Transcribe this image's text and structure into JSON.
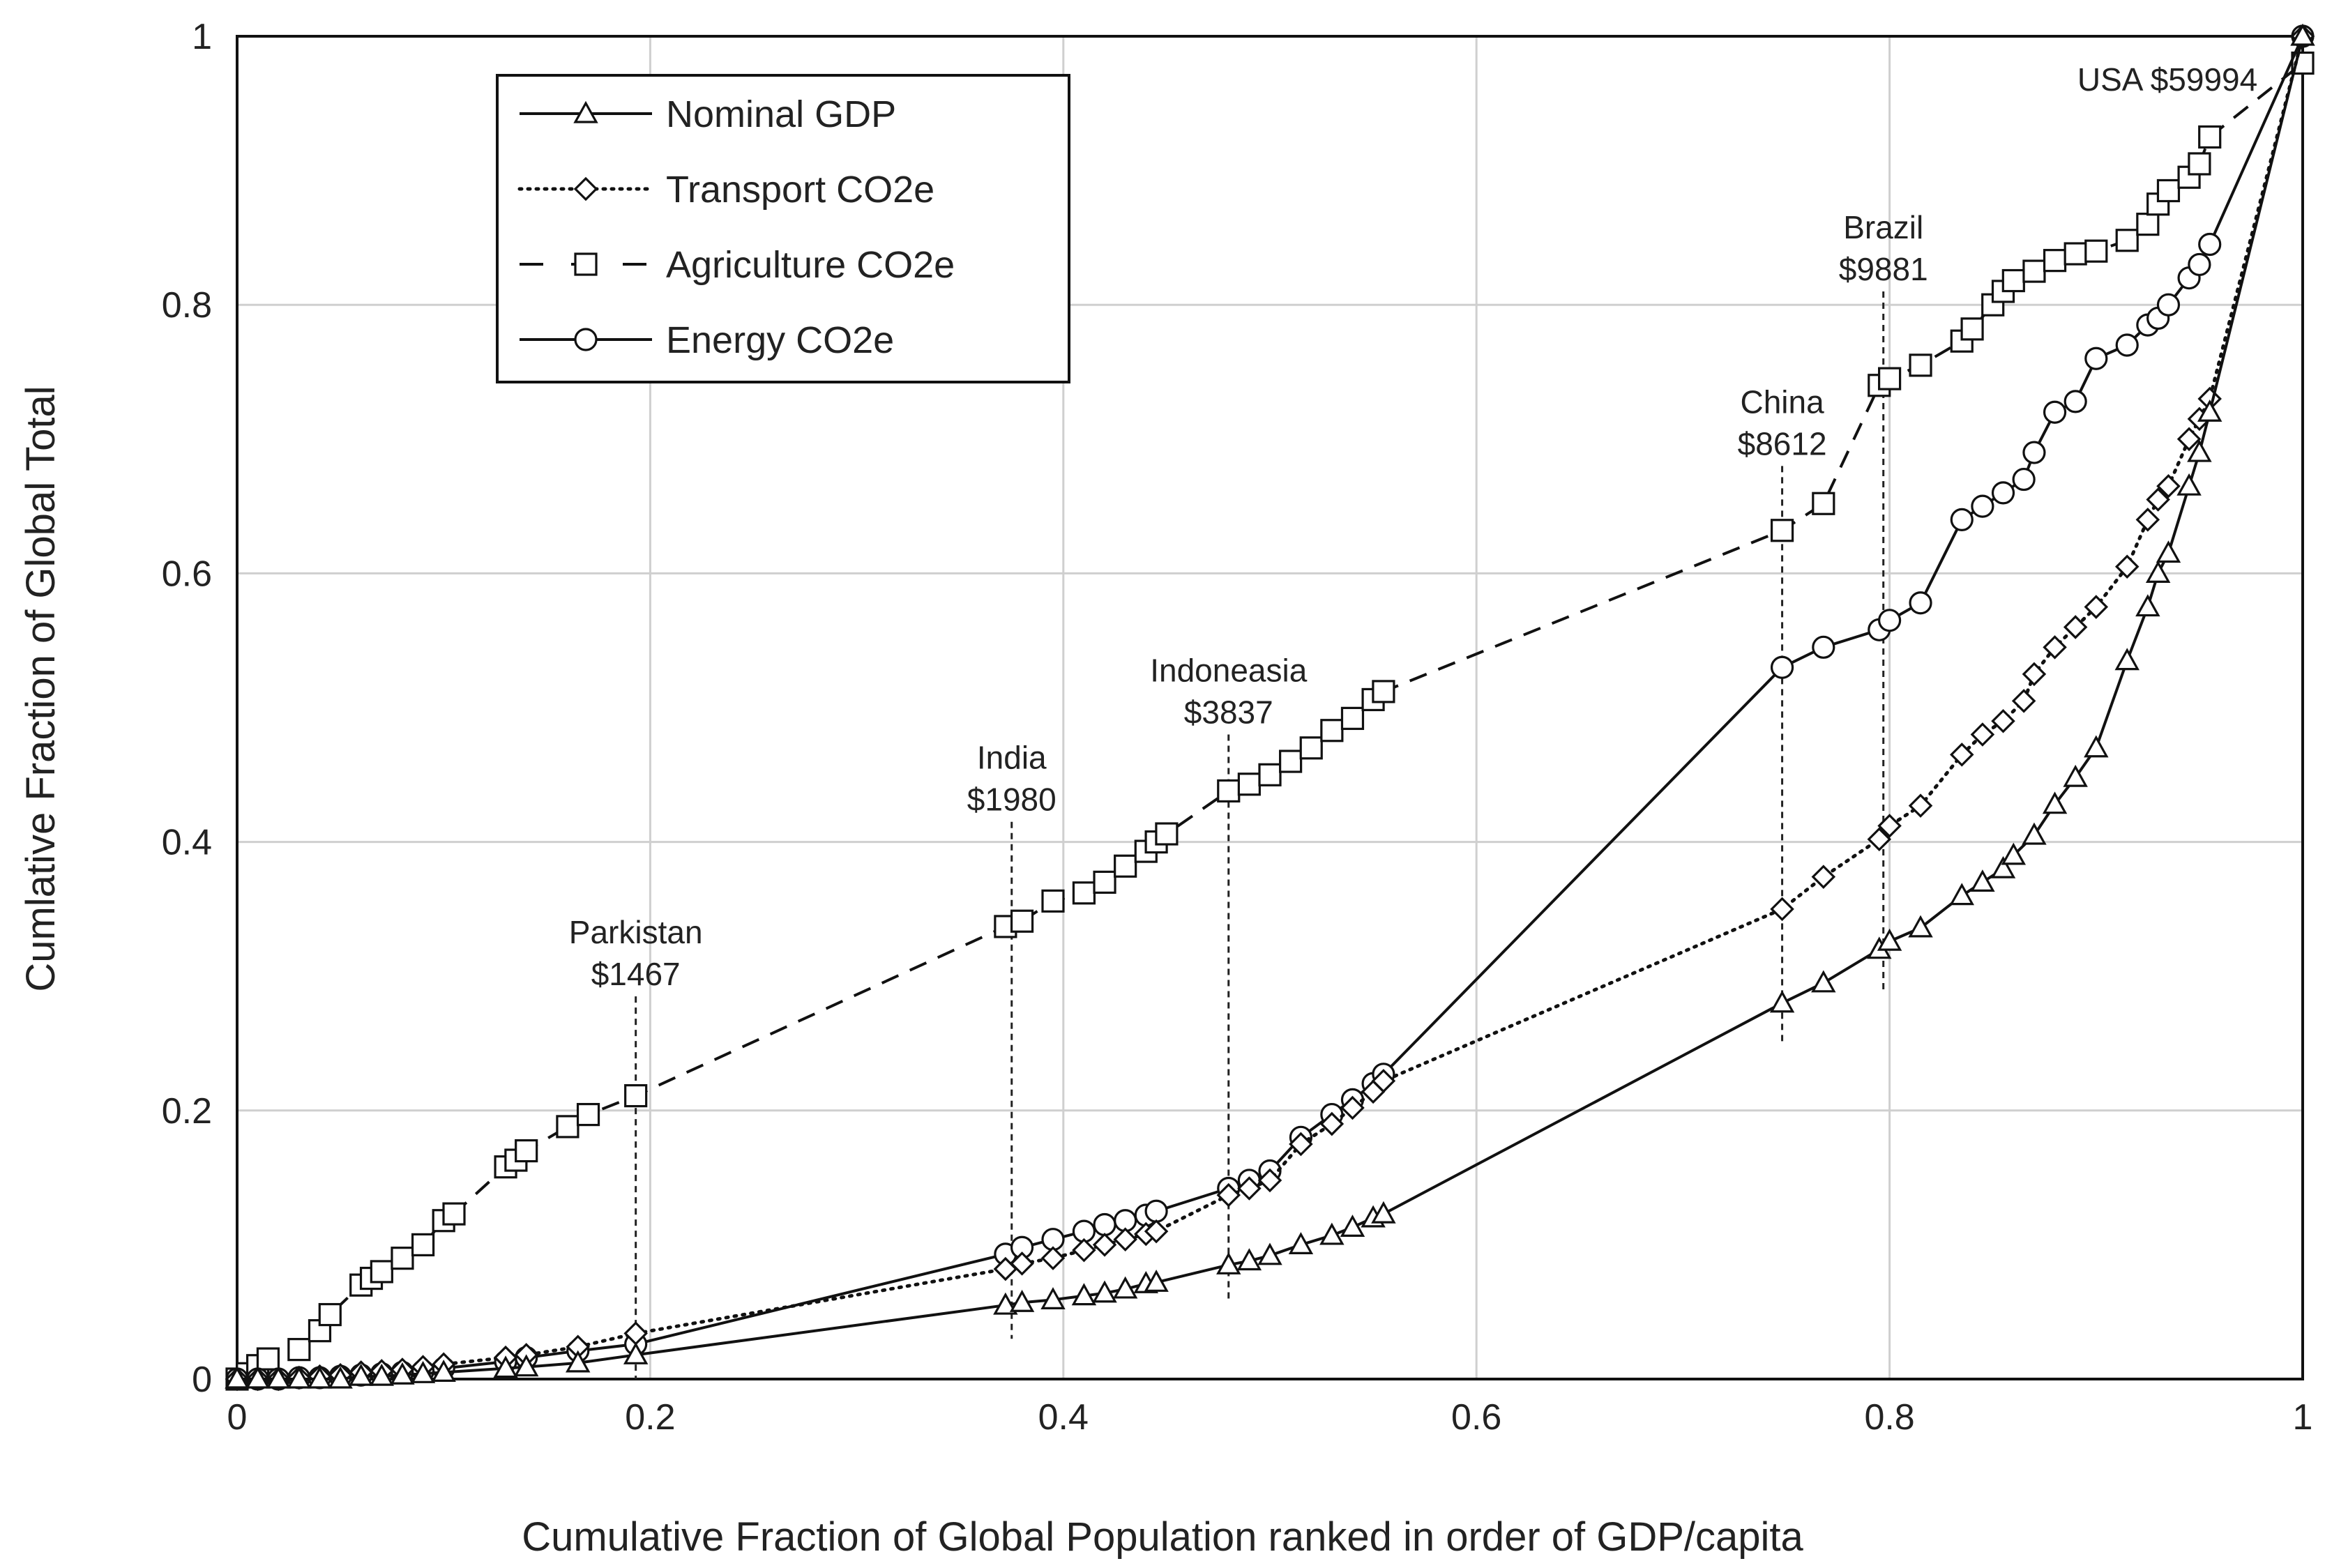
{
  "chart_data": {
    "type": "line",
    "xlabel": "Cumulative Fraction of Global Population ranked in order of GDP/capita",
    "ylabel": "Cumlative Fraction of Global  Total",
    "xlim": [
      0,
      1
    ],
    "ylim": [
      0,
      1
    ],
    "x_ticks": [
      {
        "value": 0,
        "label": "0"
      },
      {
        "value": 0.2,
        "label": "0.2"
      },
      {
        "value": 0.4,
        "label": "0.4"
      },
      {
        "value": 0.6,
        "label": "0.6"
      },
      {
        "value": 0.8,
        "label": "0.8"
      },
      {
        "value": 1,
        "label": "1"
      }
    ],
    "y_ticks": [
      {
        "value": 0,
        "label": "0"
      },
      {
        "value": 0.2,
        "label": "0.2"
      },
      {
        "value": 0.4,
        "label": "0.4"
      },
      {
        "value": 0.6,
        "label": "0.6"
      },
      {
        "value": 0.8,
        "label": "0.8"
      },
      {
        "value": 1,
        "label": "1"
      }
    ],
    "grid": true,
    "legend_position": "top-left",
    "series": [
      {
        "name": "Nominal GDP",
        "marker": "triangle",
        "line_style": "solid",
        "points": [
          [
            0.0,
            0.0
          ],
          [
            0.01,
            0.0
          ],
          [
            0.02,
            0.0
          ],
          [
            0.03,
            0.0
          ],
          [
            0.04,
            0.0
          ],
          [
            0.05,
            0.0
          ],
          [
            0.06,
            0.002
          ],
          [
            0.07,
            0.002
          ],
          [
            0.08,
            0.003
          ],
          [
            0.09,
            0.004
          ],
          [
            0.1,
            0.005
          ],
          [
            0.13,
            0.008
          ],
          [
            0.14,
            0.009
          ],
          [
            0.165,
            0.012
          ],
          [
            0.193,
            0.018
          ],
          [
            0.372,
            0.055
          ],
          [
            0.38,
            0.057
          ],
          [
            0.395,
            0.059
          ],
          [
            0.41,
            0.062
          ],
          [
            0.42,
            0.064
          ],
          [
            0.43,
            0.067
          ],
          [
            0.44,
            0.071
          ],
          [
            0.445,
            0.072
          ],
          [
            0.48,
            0.085
          ],
          [
            0.49,
            0.088
          ],
          [
            0.5,
            0.092
          ],
          [
            0.515,
            0.1
          ],
          [
            0.53,
            0.107
          ],
          [
            0.54,
            0.113
          ],
          [
            0.55,
            0.12
          ],
          [
            0.555,
            0.123
          ],
          [
            0.748,
            0.28
          ],
          [
            0.768,
            0.295
          ],
          [
            0.795,
            0.32
          ],
          [
            0.8,
            0.326
          ],
          [
            0.815,
            0.336
          ],
          [
            0.835,
            0.36
          ],
          [
            0.845,
            0.37
          ],
          [
            0.855,
            0.38
          ],
          [
            0.86,
            0.39
          ],
          [
            0.87,
            0.405
          ],
          [
            0.88,
            0.428
          ],
          [
            0.89,
            0.448
          ],
          [
            0.9,
            0.47
          ],
          [
            0.915,
            0.535
          ],
          [
            0.925,
            0.575
          ],
          [
            0.93,
            0.6
          ],
          [
            0.935,
            0.615
          ],
          [
            0.945,
            0.665
          ],
          [
            0.95,
            0.69
          ],
          [
            0.955,
            0.72
          ],
          [
            1.0,
            1.0
          ]
        ]
      },
      {
        "name": "Transport CO2e",
        "marker": "diamond",
        "line_style": "dotted",
        "points": [
          [
            0.0,
            0.0
          ],
          [
            0.01,
            0.0
          ],
          [
            0.02,
            0.0
          ],
          [
            0.03,
            0.001
          ],
          [
            0.04,
            0.002
          ],
          [
            0.05,
            0.003
          ],
          [
            0.06,
            0.005
          ],
          [
            0.07,
            0.006
          ],
          [
            0.08,
            0.007
          ],
          [
            0.09,
            0.009
          ],
          [
            0.1,
            0.011
          ],
          [
            0.13,
            0.016
          ],
          [
            0.14,
            0.018
          ],
          [
            0.165,
            0.024
          ],
          [
            0.193,
            0.034
          ],
          [
            0.372,
            0.082
          ],
          [
            0.38,
            0.086
          ],
          [
            0.395,
            0.09
          ],
          [
            0.41,
            0.096
          ],
          [
            0.42,
            0.1
          ],
          [
            0.43,
            0.104
          ],
          [
            0.44,
            0.108
          ],
          [
            0.445,
            0.11
          ],
          [
            0.48,
            0.137
          ],
          [
            0.49,
            0.142
          ],
          [
            0.5,
            0.148
          ],
          [
            0.515,
            0.175
          ],
          [
            0.53,
            0.19
          ],
          [
            0.54,
            0.202
          ],
          [
            0.55,
            0.214
          ],
          [
            0.555,
            0.222
          ],
          [
            0.748,
            0.35
          ],
          [
            0.768,
            0.374
          ],
          [
            0.795,
            0.402
          ],
          [
            0.8,
            0.412
          ],
          [
            0.815,
            0.427
          ],
          [
            0.835,
            0.465
          ],
          [
            0.845,
            0.48
          ],
          [
            0.855,
            0.49
          ],
          [
            0.865,
            0.505
          ],
          [
            0.87,
            0.525
          ],
          [
            0.88,
            0.545
          ],
          [
            0.89,
            0.56
          ],
          [
            0.9,
            0.575
          ],
          [
            0.915,
            0.605
          ],
          [
            0.925,
            0.64
          ],
          [
            0.93,
            0.655
          ],
          [
            0.935,
            0.665
          ],
          [
            0.945,
            0.7
          ],
          [
            0.95,
            0.715
          ],
          [
            0.955,
            0.73
          ],
          [
            1.0,
            1.0
          ]
        ]
      },
      {
        "name": "Agriculture CO2e",
        "marker": "square",
        "line_style": "dashed",
        "points": [
          [
            0.0,
            0.0
          ],
          [
            0.005,
            0.004
          ],
          [
            0.01,
            0.01
          ],
          [
            0.015,
            0.015
          ],
          [
            0.03,
            0.022
          ],
          [
            0.04,
            0.036
          ],
          [
            0.045,
            0.048
          ],
          [
            0.06,
            0.07
          ],
          [
            0.065,
            0.075
          ],
          [
            0.07,
            0.08
          ],
          [
            0.08,
            0.09
          ],
          [
            0.09,
            0.1
          ],
          [
            0.1,
            0.118
          ],
          [
            0.105,
            0.123
          ],
          [
            0.13,
            0.158
          ],
          [
            0.135,
            0.163
          ],
          [
            0.14,
            0.17
          ],
          [
            0.16,
            0.188
          ],
          [
            0.17,
            0.197
          ],
          [
            0.193,
            0.211
          ],
          [
            0.372,
            0.337
          ],
          [
            0.38,
            0.341
          ],
          [
            0.395,
            0.356
          ],
          [
            0.41,
            0.362
          ],
          [
            0.42,
            0.37
          ],
          [
            0.43,
            0.382
          ],
          [
            0.44,
            0.393
          ],
          [
            0.445,
            0.4
          ],
          [
            0.45,
            0.406
          ],
          [
            0.48,
            0.438
          ],
          [
            0.49,
            0.443
          ],
          [
            0.5,
            0.45
          ],
          [
            0.51,
            0.46
          ],
          [
            0.52,
            0.47
          ],
          [
            0.53,
            0.483
          ],
          [
            0.54,
            0.492
          ],
          [
            0.55,
            0.506
          ],
          [
            0.555,
            0.512
          ],
          [
            0.748,
            0.632
          ],
          [
            0.768,
            0.652
          ],
          [
            0.795,
            0.74
          ],
          [
            0.8,
            0.745
          ],
          [
            0.815,
            0.755
          ],
          [
            0.835,
            0.773
          ],
          [
            0.84,
            0.782
          ],
          [
            0.85,
            0.8
          ],
          [
            0.855,
            0.81
          ],
          [
            0.86,
            0.818
          ],
          [
            0.87,
            0.825
          ],
          [
            0.88,
            0.833
          ],
          [
            0.89,
            0.838
          ],
          [
            0.9,
            0.84
          ],
          [
            0.915,
            0.848
          ],
          [
            0.925,
            0.86
          ],
          [
            0.93,
            0.875
          ],
          [
            0.935,
            0.885
          ],
          [
            0.945,
            0.895
          ],
          [
            0.95,
            0.905
          ],
          [
            0.955,
            0.925
          ],
          [
            1.0,
            0.98
          ]
        ]
      },
      {
        "name": "Energy CO2e",
        "marker": "circle",
        "line_style": "solid",
        "points": [
          [
            0.0,
            0.0
          ],
          [
            0.01,
            0.0
          ],
          [
            0.02,
            0.0
          ],
          [
            0.03,
            0.001
          ],
          [
            0.04,
            0.001
          ],
          [
            0.05,
            0.002
          ],
          [
            0.06,
            0.003
          ],
          [
            0.07,
            0.004
          ],
          [
            0.08,
            0.005
          ],
          [
            0.09,
            0.006
          ],
          [
            0.1,
            0.008
          ],
          [
            0.13,
            0.013
          ],
          [
            0.14,
            0.016
          ],
          [
            0.165,
            0.021
          ],
          [
            0.193,
            0.026
          ],
          [
            0.372,
            0.093
          ],
          [
            0.38,
            0.098
          ],
          [
            0.395,
            0.104
          ],
          [
            0.41,
            0.11
          ],
          [
            0.42,
            0.115
          ],
          [
            0.43,
            0.118
          ],
          [
            0.44,
            0.122
          ],
          [
            0.445,
            0.125
          ],
          [
            0.48,
            0.142
          ],
          [
            0.49,
            0.148
          ],
          [
            0.5,
            0.155
          ],
          [
            0.515,
            0.18
          ],
          [
            0.53,
            0.197
          ],
          [
            0.54,
            0.208
          ],
          [
            0.55,
            0.22
          ],
          [
            0.555,
            0.227
          ],
          [
            0.748,
            0.53
          ],
          [
            0.768,
            0.545
          ],
          [
            0.795,
            0.558
          ],
          [
            0.8,
            0.565
          ],
          [
            0.815,
            0.578
          ],
          [
            0.835,
            0.64
          ],
          [
            0.845,
            0.65
          ],
          [
            0.855,
            0.66
          ],
          [
            0.865,
            0.67
          ],
          [
            0.87,
            0.69
          ],
          [
            0.88,
            0.72
          ],
          [
            0.89,
            0.728
          ],
          [
            0.9,
            0.76
          ],
          [
            0.915,
            0.77
          ],
          [
            0.925,
            0.785
          ],
          [
            0.93,
            0.79
          ],
          [
            0.935,
            0.8
          ],
          [
            0.945,
            0.82
          ],
          [
            0.95,
            0.83
          ],
          [
            0.955,
            0.845
          ],
          [
            1.0,
            1.0
          ]
        ]
      }
    ],
    "annotations": [
      {
        "lines": [
          "Parkistan",
          "$1467"
        ],
        "x": 0.193,
        "y_top": 0.285,
        "y_bottom": 0.0
      },
      {
        "lines": [
          "India",
          "$1980"
        ],
        "x": 0.375,
        "y_top": 0.415,
        "y_bottom": 0.03
      },
      {
        "lines": [
          "Indoneasia",
          "$3837"
        ],
        "x": 0.48,
        "y_top": 0.48,
        "y_bottom": 0.06
      },
      {
        "lines": [
          "China",
          "$8612"
        ],
        "x": 0.748,
        "y_top": 0.68,
        "y_bottom": 0.25
      },
      {
        "lines": [
          "Brazil",
          "$9881"
        ],
        "x": 0.797,
        "y_top": 0.81,
        "y_bottom": 0.29
      },
      {
        "lines": [
          "USA $59994"
        ],
        "x": 0.968,
        "y_top": 0.975,
        "y_bottom": 0.975
      }
    ]
  }
}
